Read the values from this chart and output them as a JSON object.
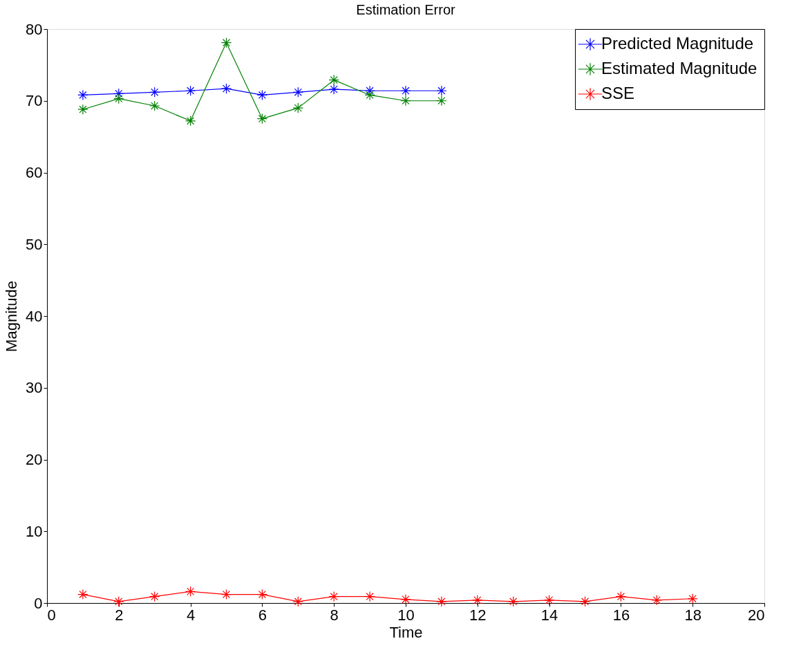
{
  "chart_data": {
    "type": "line",
    "title": "Estimation Error",
    "xlabel": "Time",
    "ylabel": "Magnitude",
    "x": [
      1,
      2,
      3,
      4,
      5,
      6,
      7,
      8,
      9,
      10,
      11,
      12,
      13,
      14,
      15,
      16,
      17,
      18
    ],
    "series": [
      {
        "name": "Predicted Magnitude",
        "color": "#0000ff",
        "values": [
          70.8,
          71.0,
          71.2,
          71.4,
          71.7,
          70.8,
          71.2,
          71.6,
          71.4,
          71.4,
          71.4,
          null,
          null,
          null,
          null,
          null,
          null,
          null
        ]
      },
      {
        "name": "Estimated Magnitude",
        "color": "#008000",
        "values": [
          68.8,
          70.3,
          69.3,
          67.2,
          78.1,
          67.5,
          69.0,
          72.9,
          70.8,
          70.0,
          70.0,
          null,
          null,
          null,
          null,
          null,
          null,
          null
        ]
      },
      {
        "name": "SSE",
        "color": "#ff0000",
        "values": [
          1.2,
          0.2,
          0.9,
          1.6,
          1.2,
          1.2,
          0.2,
          0.9,
          0.9,
          0.5,
          0.2,
          0.4,
          0.2,
          0.4,
          0.2,
          0.9,
          0.4,
          0.6
        ]
      }
    ],
    "xlim": [
      0,
      20
    ],
    "xticks": [
      0,
      2,
      4,
      6,
      8,
      10,
      12,
      14,
      16,
      18,
      20
    ],
    "ylim": [
      0,
      80
    ],
    "yticks": [
      0,
      10,
      20,
      30,
      40,
      50,
      60,
      70,
      80
    ],
    "legend": "top right",
    "marker": "cross",
    "line_style": "solid",
    "grid": false
  }
}
